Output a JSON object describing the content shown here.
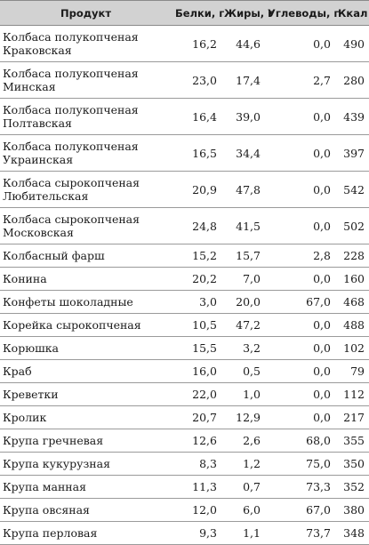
{
  "table": {
    "headers": {
      "product": "Продукт",
      "protein": "Белки, г",
      "fat": "Жиры, г",
      "carbs": "Углеводы, г",
      "kcal": "Ккал"
    },
    "rows": [
      {
        "product": "Колбаса полукопченая Краковская",
        "protein": "16,2",
        "fat": "44,6",
        "carbs": "0,0",
        "kcal": "490"
      },
      {
        "product": "Колбаса полукопченая Минская",
        "protein": "23,0",
        "fat": "17,4",
        "carbs": "2,7",
        "kcal": "280"
      },
      {
        "product": "Колбаса полукопченая Полтавская",
        "protein": "16,4",
        "fat": "39,0",
        "carbs": "0,0",
        "kcal": "439"
      },
      {
        "product": "Колбаса полукопченая Украинская",
        "protein": "16,5",
        "fat": "34,4",
        "carbs": "0,0",
        "kcal": "397"
      },
      {
        "product": "Колбаса сырокопченая Любительская",
        "protein": "20,9",
        "fat": "47,8",
        "carbs": "0,0",
        "kcal": "542"
      },
      {
        "product": "Колбаса сырокопченая Московская",
        "protein": "24,8",
        "fat": "41,5",
        "carbs": "0,0",
        "kcal": "502"
      },
      {
        "product": "Колбасный фарш",
        "protein": "15,2",
        "fat": "15,7",
        "carbs": "2,8",
        "kcal": "228"
      },
      {
        "product": "Конина",
        "protein": "20,2",
        "fat": "7,0",
        "carbs": "0,0",
        "kcal": "160"
      },
      {
        "product": "Конфеты шоколадные",
        "protein": "3,0",
        "fat": "20,0",
        "carbs": "67,0",
        "kcal": "468"
      },
      {
        "product": "Корейка сырокопченая",
        "protein": "10,5",
        "fat": "47,2",
        "carbs": "0,0",
        "kcal": "488"
      },
      {
        "product": "Корюшка",
        "protein": "15,5",
        "fat": "3,2",
        "carbs": "0,0",
        "kcal": "102"
      },
      {
        "product": "Краб",
        "protein": "16,0",
        "fat": "0,5",
        "carbs": "0,0",
        "kcal": "79"
      },
      {
        "product": "Креветки",
        "protein": "22,0",
        "fat": "1,0",
        "carbs": "0,0",
        "kcal": "112"
      },
      {
        "product": "Кролик",
        "protein": "20,7",
        "fat": "12,9",
        "carbs": "0,0",
        "kcal": "217"
      },
      {
        "product": "Крупа гречневая",
        "protein": "12,6",
        "fat": "2,6",
        "carbs": "68,0",
        "kcal": "355"
      },
      {
        "product": "Крупа кукурузная",
        "protein": "8,3",
        "fat": "1,2",
        "carbs": "75,0",
        "kcal": "350"
      },
      {
        "product": "Крупа манная",
        "protein": "11,3",
        "fat": "0,7",
        "carbs": "73,3",
        "kcal": "352"
      },
      {
        "product": "Крупа овсяная",
        "protein": "12,0",
        "fat": "6,0",
        "carbs": "67,0",
        "kcal": "380"
      },
      {
        "product": "Крупа перловая",
        "protein": "9,3",
        "fat": "1,1",
        "carbs": "73,7",
        "kcal": "348"
      }
    ]
  }
}
